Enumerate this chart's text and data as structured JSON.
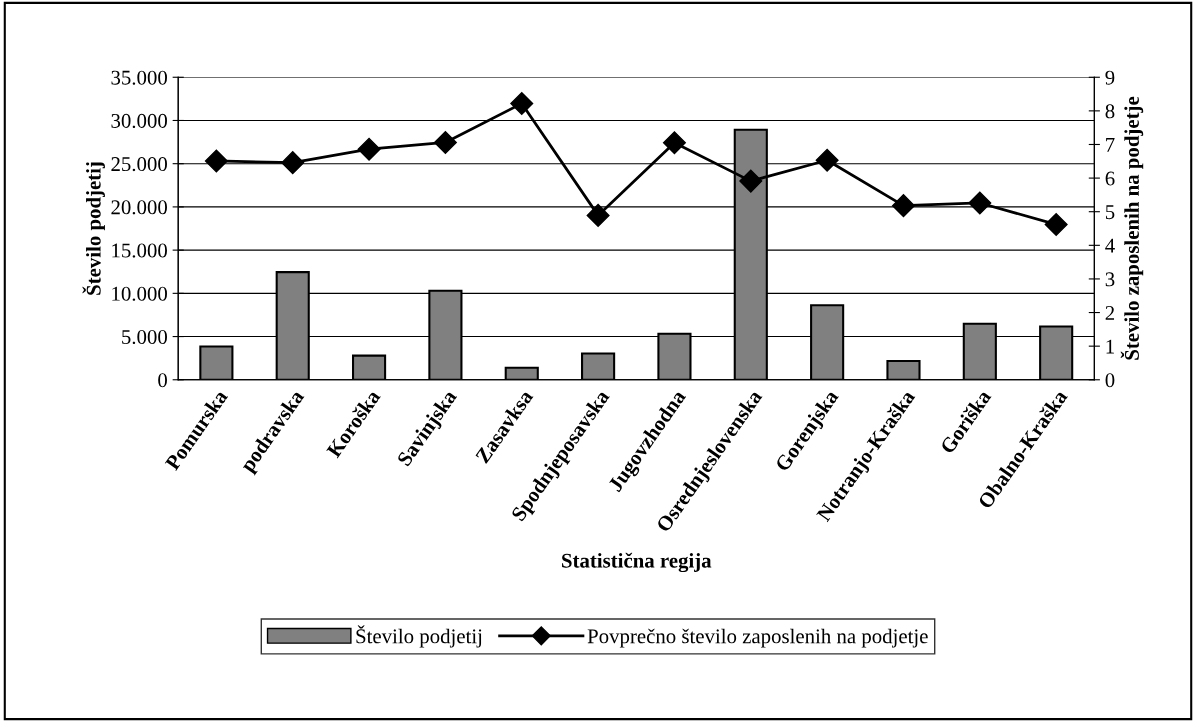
{
  "chart_data": {
    "type": "bar",
    "xlabel": "Statistična regija",
    "ylabel": "Število podjetij",
    "y2label": "Število zaposlenih na podjetje",
    "categories": [
      "Pomurska",
      "podravska",
      "Koroška",
      "Savinjska",
      "Zasavksa",
      "Spodnjeposavska",
      "Jugovzhodna",
      "Osrednjeslovenska",
      "Gorenjska",
      "Notranjo-Kraška",
      "Goriška",
      "Obalno-Kraška"
    ],
    "series": [
      {
        "name": "Število podjetij",
        "color": "#808080",
        "values": [
          3850,
          12450,
          2790,
          10300,
          1400,
          3040,
          5330,
          28930,
          8620,
          2180,
          6480,
          6160
        ]
      },
      {
        "name": "Povprečno število zaposlenih na podjetje",
        "type": "line",
        "axis": "y2",
        "color": "#000000",
        "marker": "diamond",
        "values": [
          6.51,
          6.46,
          6.86,
          7.06,
          8.22,
          4.89,
          7.05,
          5.91,
          6.53,
          5.18,
          5.26,
          4.62
        ]
      }
    ],
    "ylim": [
      0,
      35000
    ],
    "yticks": [
      0,
      {
        "value": 5000,
        "label": "5.000"
      },
      {
        "value": 10000,
        "label": "10.000"
      },
      {
        "value": 15000,
        "label": "15.000"
      },
      {
        "value": 20000,
        "label": "20.000"
      },
      {
        "value": 25000,
        "label": "25.000"
      },
      {
        "value": 30000,
        "label": "30.000"
      },
      {
        "value": 35000,
        "label": "35.000"
      }
    ],
    "y2lim": [
      0,
      9
    ],
    "y2ticks": [
      0,
      1,
      2,
      3,
      4,
      5,
      6,
      7,
      8,
      9
    ],
    "grid": "y",
    "legend": "bottom"
  }
}
